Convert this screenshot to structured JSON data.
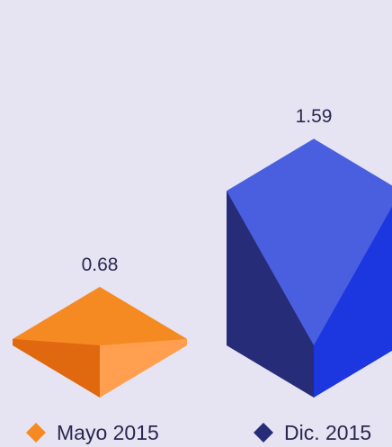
{
  "chart_data": {
    "type": "bar",
    "categories": [
      "Mayo 2015",
      "Dic. 2015"
    ],
    "values": [
      0.68,
      1.59
    ],
    "value_labels": [
      "0.68",
      "1.59"
    ],
    "colors": {
      "Mayo 2015": {
        "top": "#f68a22",
        "left": "#e0680f",
        "right": "#ff9f4f",
        "marker": "#f68a22"
      },
      "Dic. 2015": {
        "top": "#4a5fdf",
        "left": "#262c78",
        "right": "#1c36e0",
        "marker": "#262c78"
      }
    },
    "legend": [
      {
        "label": "Mayo 2015",
        "marker": "diamond"
      },
      {
        "label": "Dic. 2015",
        "marker": "diamond"
      }
    ],
    "legend_position": "bottom",
    "grid": false
  },
  "background": "#e6e4f2"
}
